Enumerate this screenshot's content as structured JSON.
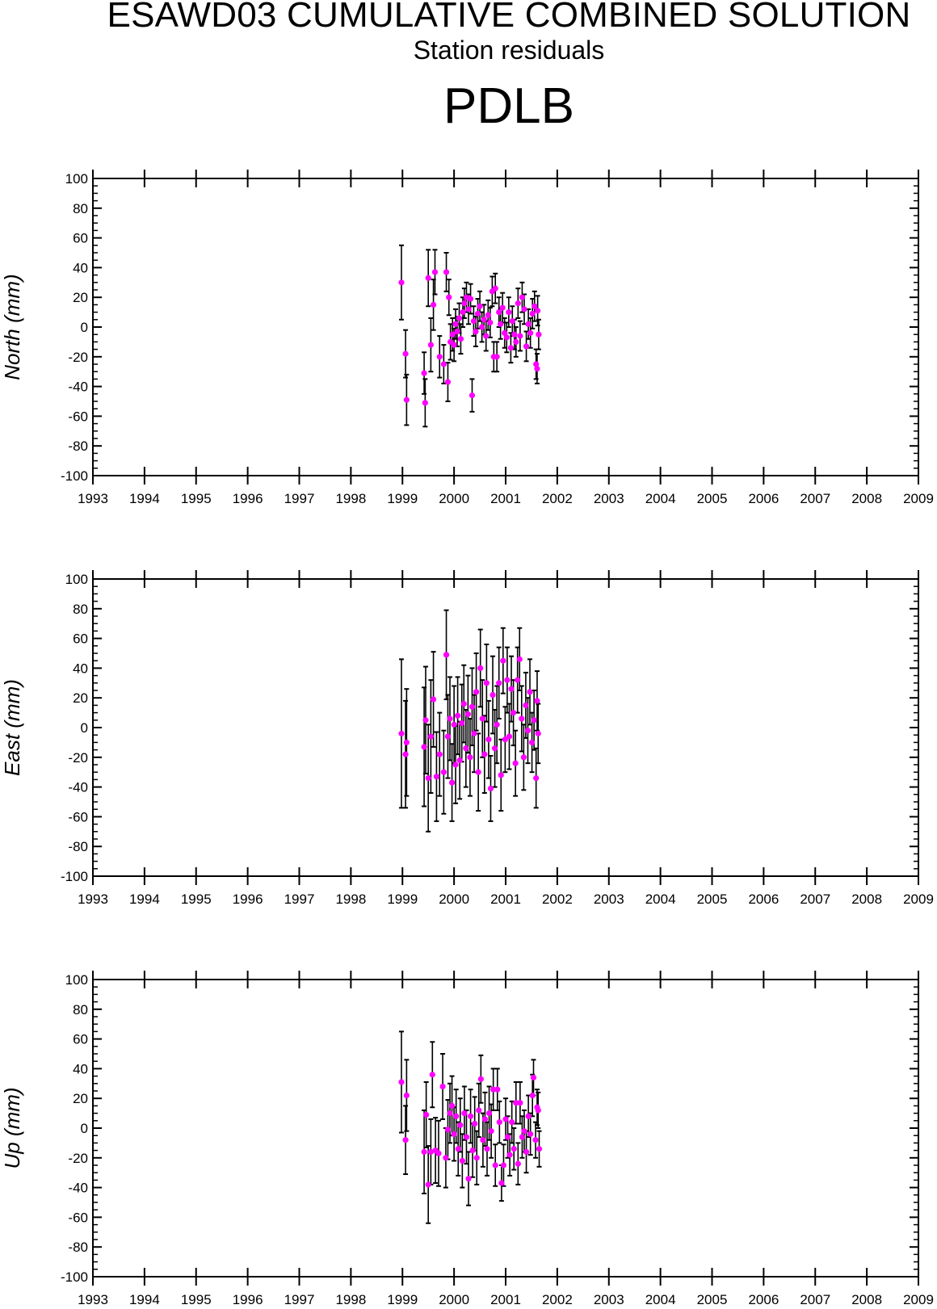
{
  "header": {
    "title": "ESAWD03 CUMULATIVE COMBINED SOLUTION",
    "subtitle": "Station residuals",
    "station": "PDLB"
  },
  "colors": {
    "point": "#ff00ff",
    "error_bar": "#000000",
    "axis": "#000000",
    "background": "#ffffff"
  },
  "chart_data": [
    {
      "type": "scatter",
      "panel": "north",
      "title": "",
      "xlabel": "",
      "ylabel": "North (mm)",
      "xlim": [
        1993,
        2009
      ],
      "ylim": [
        -100,
        100
      ],
      "xticks": [
        1993,
        1994,
        1995,
        1996,
        1997,
        1998,
        1999,
        2000,
        2001,
        2002,
        2003,
        2004,
        2005,
        2006,
        2007,
        2008,
        2009
      ],
      "yticks": [
        -100,
        -80,
        -60,
        -40,
        -20,
        0,
        20,
        40,
        60,
        80,
        100
      ],
      "grid": false,
      "error_bars": true,
      "points": [
        [
          1998.98,
          30,
          25
        ],
        [
          1999.06,
          -18,
          16
        ],
        [
          1999.08,
          -49,
          17
        ],
        [
          1999.42,
          -31,
          14
        ],
        [
          1999.44,
          -51,
          16
        ],
        [
          1999.5,
          33,
          19
        ],
        [
          1999.55,
          -12,
          18
        ],
        [
          1999.6,
          15,
          17
        ],
        [
          1999.63,
          37,
          15
        ],
        [
          1999.72,
          -20,
          14
        ],
        [
          1999.8,
          -25,
          13
        ],
        [
          1999.85,
          37,
          13
        ],
        [
          1999.88,
          -37,
          13
        ],
        [
          1999.9,
          20,
          12
        ],
        [
          1999.93,
          -10,
          12
        ],
        [
          1999.97,
          -5,
          11
        ],
        [
          2000.0,
          -12,
          11
        ],
        [
          2000.03,
          2,
          10
        ],
        [
          2000.06,
          -3,
          10
        ],
        [
          2000.1,
          6,
          10
        ],
        [
          2000.13,
          -8,
          10
        ],
        [
          2000.17,
          10,
          10
        ],
        [
          2000.2,
          16,
          10
        ],
        [
          2000.24,
          20,
          10
        ],
        [
          2000.28,
          12,
          10
        ],
        [
          2000.32,
          19,
          10
        ],
        [
          2000.35,
          -46,
          11
        ],
        [
          2000.38,
          4,
          10
        ],
        [
          2000.42,
          -3,
          10
        ],
        [
          2000.46,
          9,
          10
        ],
        [
          2000.5,
          14,
          10
        ],
        [
          2000.54,
          0,
          10
        ],
        [
          2000.58,
          5,
          10
        ],
        [
          2000.62,
          -6,
          10
        ],
        [
          2000.66,
          8,
          10
        ],
        [
          2000.7,
          3,
          10
        ],
        [
          2000.74,
          24,
          10
        ],
        [
          2000.77,
          -20,
          10
        ],
        [
          2000.8,
          26,
          10
        ],
        [
          2000.83,
          -20,
          10
        ],
        [
          2000.87,
          10,
          10
        ],
        [
          2000.9,
          2,
          10
        ],
        [
          2000.94,
          13,
          10
        ],
        [
          2000.98,
          -4,
          10
        ],
        [
          2001.02,
          -7,
          10
        ],
        [
          2001.06,
          10,
          10
        ],
        [
          2001.1,
          -14,
          10
        ],
        [
          2001.13,
          4,
          10
        ],
        [
          2001.17,
          -5,
          10
        ],
        [
          2001.2,
          -10,
          10
        ],
        [
          2001.24,
          16,
          10
        ],
        [
          2001.28,
          -6,
          10
        ],
        [
          2001.32,
          20,
          10
        ],
        [
          2001.36,
          12,
          10
        ],
        [
          2001.4,
          -13,
          10
        ],
        [
          2001.44,
          2,
          10
        ],
        [
          2001.48,
          -4,
          10
        ],
        [
          2001.52,
          9,
          10
        ],
        [
          2001.56,
          14,
          10
        ],
        [
          2001.59,
          -25,
          10
        ],
        [
          2001.61,
          -28,
          10
        ],
        [
          2001.64,
          -5,
          10
        ],
        [
          2001.62,
          11,
          10
        ]
      ]
    },
    {
      "type": "scatter",
      "panel": "east",
      "title": "",
      "xlabel": "",
      "ylabel": "East (mm)",
      "xlim": [
        1993,
        2009
      ],
      "ylim": [
        -100,
        100
      ],
      "xticks": [
        1993,
        1994,
        1995,
        1996,
        1997,
        1998,
        1999,
        2000,
        2001,
        2002,
        2003,
        2004,
        2005,
        2006,
        2007,
        2008,
        2009
      ],
      "yticks": [
        -100,
        -80,
        -60,
        -40,
        -20,
        0,
        20,
        40,
        60,
        80,
        100
      ],
      "grid": false,
      "error_bars": true,
      "points": [
        [
          1998.98,
          -4,
          50
        ],
        [
          1999.06,
          -18,
          36
        ],
        [
          1999.08,
          -10,
          36
        ],
        [
          1999.42,
          -13,
          40
        ],
        [
          1999.45,
          5,
          36
        ],
        [
          1999.5,
          -34,
          36
        ],
        [
          1999.55,
          -6,
          38
        ],
        [
          1999.6,
          19,
          32
        ],
        [
          1999.66,
          -33,
          30
        ],
        [
          1999.72,
          -18,
          28
        ],
        [
          1999.8,
          -30,
          28
        ],
        [
          1999.85,
          49,
          30
        ],
        [
          1999.88,
          -6,
          28
        ],
        [
          1999.92,
          6,
          28
        ],
        [
          1999.96,
          -37,
          26
        ],
        [
          2000.0,
          2,
          26
        ],
        [
          2000.03,
          -25,
          26
        ],
        [
          2000.07,
          8,
          26
        ],
        [
          2000.11,
          -22,
          26
        ],
        [
          2000.15,
          3,
          26
        ],
        [
          2000.19,
          16,
          26
        ],
        [
          2000.23,
          -14,
          26
        ],
        [
          2000.27,
          9,
          26
        ],
        [
          2000.31,
          -20,
          26
        ],
        [
          2000.35,
          14,
          26
        ],
        [
          2000.39,
          -4,
          26
        ],
        [
          2000.43,
          24,
          26
        ],
        [
          2000.47,
          -30,
          26
        ],
        [
          2000.51,
          40,
          26
        ],
        [
          2000.55,
          6,
          26
        ],
        [
          2000.59,
          -18,
          26
        ],
        [
          2000.63,
          30,
          26
        ],
        [
          2000.67,
          -8,
          26
        ],
        [
          2000.71,
          -41,
          22
        ],
        [
          2000.75,
          22,
          26
        ],
        [
          2000.79,
          -14,
          26
        ],
        [
          2000.83,
          2,
          26
        ],
        [
          2000.87,
          30,
          24
        ],
        [
          2000.91,
          -32,
          24
        ],
        [
          2000.95,
          45,
          22
        ],
        [
          2000.99,
          -8,
          22
        ],
        [
          2001.03,
          32,
          22
        ],
        [
          2001.07,
          -6,
          22
        ],
        [
          2001.11,
          26,
          22
        ],
        [
          2001.15,
          10,
          22
        ],
        [
          2001.19,
          -24,
          22
        ],
        [
          2001.23,
          32,
          22
        ],
        [
          2001.27,
          46,
          21
        ],
        [
          2001.31,
          6,
          22
        ],
        [
          2001.35,
          -20,
          22
        ],
        [
          2001.39,
          15,
          22
        ],
        [
          2001.43,
          -2,
          22
        ],
        [
          2001.47,
          24,
          22
        ],
        [
          2001.51,
          -10,
          20
        ],
        [
          2001.55,
          5,
          20
        ],
        [
          2001.59,
          -34,
          20
        ],
        [
          2001.61,
          18,
          20
        ],
        [
          2001.63,
          -4,
          20
        ]
      ]
    },
    {
      "type": "scatter",
      "panel": "up",
      "title": "",
      "xlabel": "",
      "ylabel": "Up (mm)",
      "xlim": [
        1993,
        2009
      ],
      "ylim": [
        -100,
        100
      ],
      "xticks": [
        1993,
        1994,
        1995,
        1996,
        1997,
        1998,
        1999,
        2000,
        2001,
        2002,
        2003,
        2004,
        2005,
        2006,
        2007,
        2008,
        2009
      ],
      "yticks": [
        -100,
        -80,
        -60,
        -40,
        -20,
        0,
        20,
        40,
        60,
        80,
        100
      ],
      "grid": false,
      "error_bars": true,
      "points": [
        [
          1998.98,
          31,
          34
        ],
        [
          1999.06,
          -8,
          23
        ],
        [
          1999.08,
          22,
          24
        ],
        [
          1999.42,
          -16,
          28
        ],
        [
          1999.46,
          9,
          22
        ],
        [
          1999.5,
          -38,
          26
        ],
        [
          1999.55,
          -16,
          22
        ],
        [
          1999.58,
          36,
          22
        ],
        [
          1999.64,
          -15,
          22
        ],
        [
          1999.7,
          -17,
          22
        ],
        [
          1999.78,
          28,
          22
        ],
        [
          1999.84,
          -20,
          20
        ],
        [
          1999.88,
          -1,
          20
        ],
        [
          1999.92,
          10,
          20
        ],
        [
          1999.96,
          15,
          20
        ],
        [
          2000.0,
          -4,
          18
        ],
        [
          2000.04,
          8,
          18
        ],
        [
          2000.08,
          -14,
          18
        ],
        [
          2000.12,
          2,
          18
        ],
        [
          2000.16,
          -22,
          18
        ],
        [
          2000.2,
          10,
          18
        ],
        [
          2000.24,
          -6,
          18
        ],
        [
          2000.28,
          -34,
          18
        ],
        [
          2000.32,
          8,
          18
        ],
        [
          2000.36,
          -15,
          18
        ],
        [
          2000.4,
          3,
          18
        ],
        [
          2000.44,
          -20,
          18
        ],
        [
          2000.48,
          12,
          18
        ],
        [
          2000.52,
          33,
          16
        ],
        [
          2000.56,
          -8,
          18
        ],
        [
          2000.6,
          6,
          18
        ],
        [
          2000.64,
          -14,
          18
        ],
        [
          2000.68,
          10,
          18
        ],
        [
          2000.72,
          -2,
          18
        ],
        [
          2000.76,
          26,
          14
        ],
        [
          2000.8,
          -25,
          14
        ],
        [
          2000.84,
          26,
          14
        ],
        [
          2000.88,
          4,
          14
        ],
        [
          2000.92,
          -37,
          12
        ],
        [
          2000.96,
          -25,
          14
        ],
        [
          2001.0,
          6,
          14
        ],
        [
          2001.04,
          -6,
          14
        ],
        [
          2001.08,
          -18,
          14
        ],
        [
          2001.12,
          4,
          14
        ],
        [
          2001.16,
          -14,
          14
        ],
        [
          2001.2,
          17,
          14
        ],
        [
          2001.24,
          -24,
          14
        ],
        [
          2001.28,
          17,
          14
        ],
        [
          2001.32,
          -6,
          14
        ],
        [
          2001.36,
          -2,
          14
        ],
        [
          2001.4,
          -16,
          14
        ],
        [
          2001.44,
          8,
          14
        ],
        [
          2001.48,
          -4,
          14
        ],
        [
          2001.52,
          22,
          14
        ],
        [
          2001.54,
          34,
          12
        ],
        [
          2001.58,
          -8,
          12
        ],
        [
          2001.61,
          14,
          12
        ],
        [
          2001.63,
          12,
          12
        ],
        [
          2001.65,
          -14,
          12
        ]
      ]
    }
  ]
}
